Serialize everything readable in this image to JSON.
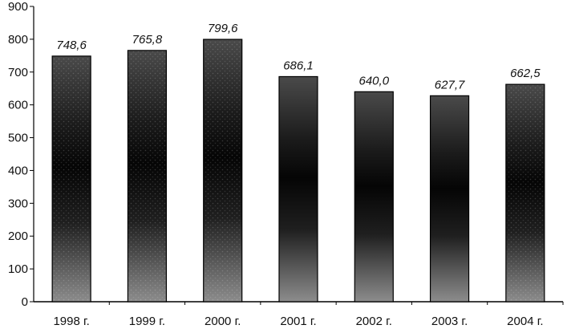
{
  "chart_data": {
    "type": "bar",
    "categories": [
      "1998 г.",
      "1999 г.",
      "2000 г.",
      "2001 г.",
      "2002 г.",
      "2003 г.",
      "2004 г."
    ],
    "values": [
      748.6,
      765.8,
      799.6,
      686.1,
      640.0,
      627.7,
      662.5
    ],
    "data_labels": [
      "748,6",
      "765,8",
      "799,6",
      "686,1",
      "640,0",
      "627,7",
      "662,5"
    ],
    "y_ticks": [
      "0",
      "100",
      "200",
      "300",
      "400",
      "500",
      "600",
      "700",
      "800",
      "900"
    ],
    "ylim": [
      0,
      900
    ],
    "grid": false,
    "legend": "none",
    "bar_styles": [
      "dotted",
      "dotted",
      "dotted",
      "solid",
      "solid",
      "solid",
      "dotted"
    ],
    "colors": {
      "bar_dark": "#0b0b0b",
      "bar_mid": "#3a3a3a",
      "bar_light": "#bdbdbd",
      "axis": "#000000"
    }
  }
}
